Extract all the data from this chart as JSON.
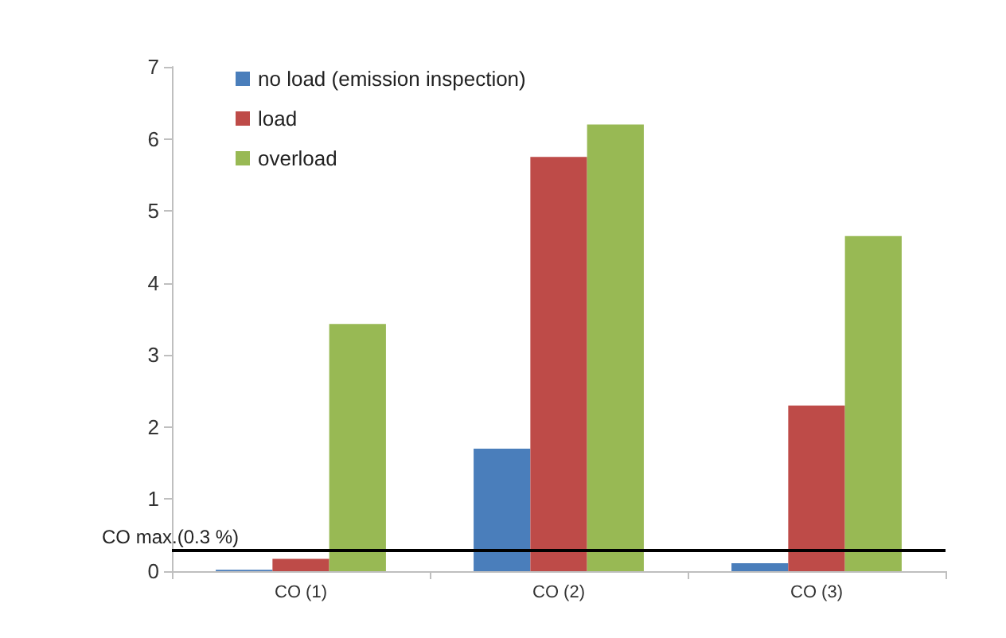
{
  "chart_data": {
    "type": "bar",
    "categories": [
      "CO (1)",
      "CO (2)",
      "CO (3)"
    ],
    "series": [
      {
        "name": "no load (emission inspection)",
        "color": "#4a7ebb",
        "values": [
          0.02,
          1.7,
          0.11
        ]
      },
      {
        "name": "load",
        "color": "#be4b48",
        "values": [
          0.17,
          5.75,
          2.3
        ]
      },
      {
        "name": "overload",
        "color": "#98b954",
        "values": [
          3.43,
          6.2,
          4.65
        ]
      }
    ],
    "ylim": [
      0,
      7
    ],
    "yticks": [
      0,
      1,
      2,
      3,
      4,
      5,
      6,
      7
    ],
    "grid": false,
    "legend": "top left",
    "ref_lines": [
      {
        "axis": "y",
        "value": 0.3,
        "label": "CO max.(0.3 %)",
        "color": "#000000"
      }
    ]
  }
}
